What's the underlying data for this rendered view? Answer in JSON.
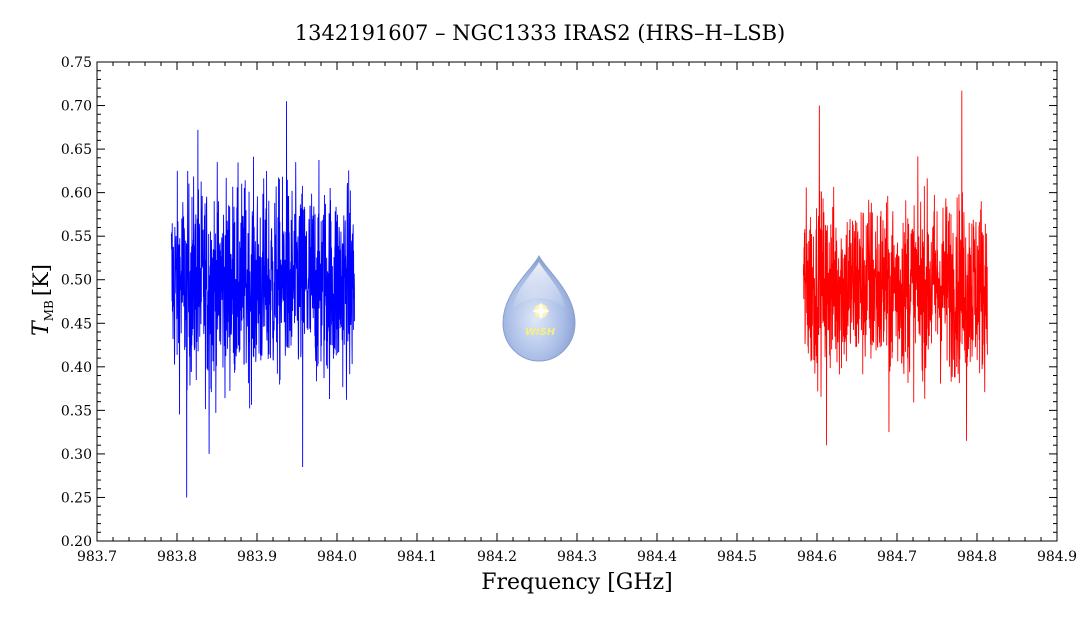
{
  "chart_data": {
    "type": "line",
    "title": "1342191607 – NGC1333 IRAS2 (HRS–H–LSB)",
    "xlabel": "Frequency [GHz]",
    "ylabel_main": "T",
    "ylabel_sub": "MB",
    "ylabel_unit": "[K]",
    "xlim": [
      983.7,
      984.9
    ],
    "ylim": [
      0.2,
      0.75
    ],
    "x_ticks": [
      "983.7",
      "983.8",
      "983.9",
      "984.0",
      "984.1",
      "984.2",
      "984.3",
      "984.4",
      "984.5",
      "984.6",
      "984.7",
      "984.8",
      "984.9"
    ],
    "y_ticks": [
      "0.20",
      "0.25",
      "0.30",
      "0.35",
      "0.40",
      "0.45",
      "0.50",
      "0.55",
      "0.60",
      "0.65",
      "0.70",
      "0.75"
    ],
    "grid": false,
    "series": [
      {
        "color": "#0000ff",
        "x_range": [
          983.793,
          984.022
        ],
        "mean": 0.495,
        "min": 0.25,
        "max": 0.705,
        "extremes": [
          [
            983.812,
            0.25
          ],
          [
            983.937,
            0.705
          ],
          [
            983.957,
            0.285
          ],
          [
            983.84,
            0.3
          ],
          [
            983.826,
            0.672
          ]
        ]
      },
      {
        "color": "#ff0000",
        "x_range": [
          984.583,
          984.813
        ],
        "mean": 0.493,
        "min": 0.31,
        "max": 0.717,
        "extremes": [
          [
            984.781,
            0.717
          ],
          [
            984.612,
            0.31
          ],
          [
            984.603,
            0.7
          ],
          [
            984.787,
            0.315
          ],
          [
            984.69,
            0.325
          ]
        ]
      }
    ]
  },
  "logo": {
    "text": "WISH"
  }
}
